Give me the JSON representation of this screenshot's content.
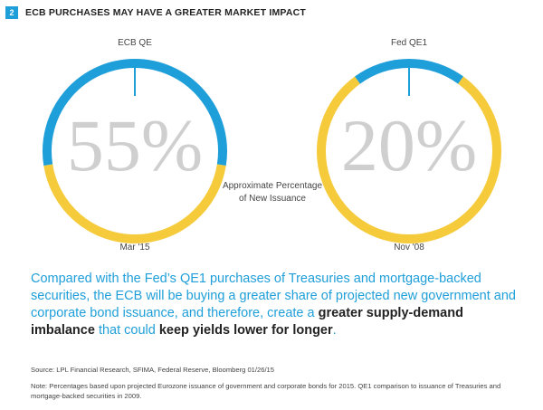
{
  "header": {
    "figure_number": "2",
    "title": "ECB PURCHASES MAY HAVE A GREATER MARKET IMPACT"
  },
  "colors": {
    "blue": "#1f9fd9",
    "yellow": "#f5cb3c",
    "percent_text": "#cfcfcf",
    "tick": "#1f9fd9"
  },
  "chart_data": [
    {
      "type": "pie",
      "title": "ECB QE",
      "value_label": "55%",
      "date_label": "Mar '15",
      "slices": [
        {
          "label": "Approximate Percentage of New Issuance",
          "value": 55,
          "color": "#1f9fd9"
        },
        {
          "label": "",
          "value": 45,
          "color": "#f5cb3c"
        }
      ]
    },
    {
      "type": "pie",
      "title": "Fed QE1",
      "value_label": "20%",
      "date_label": "Nov '08",
      "slices": [
        {
          "label": "Approximate Percentage of New Issuance",
          "value": 20,
          "color": "#1f9fd9"
        },
        {
          "label": "",
          "value": 80,
          "color": "#f5cb3c"
        }
      ]
    }
  ],
  "center_note": [
    "Approximate Percentage",
    "of New Issuance"
  ],
  "summary": {
    "part1": "Compared with the Fed’s QE1 purchases of Treasuries and mortgage-backed securities, the ECB will be buying a greater share of projected new government and corporate bond issuance, and therefore, create a ",
    "bold1": "greater supply-demand imbalance",
    "part2": " that could ",
    "bold2": "keep yields lower for longer",
    "part3": "."
  },
  "source": "Source: LPL Financial Research, SFIMA, Federal Reserve, Bloomberg   01/26/15",
  "note": "Note: Percentages based upon projected Eurozone issuance of government and corporate bonds for 2015. QE1 comparison to issuance of Treasuries and mortgage-backed securities in 2009."
}
